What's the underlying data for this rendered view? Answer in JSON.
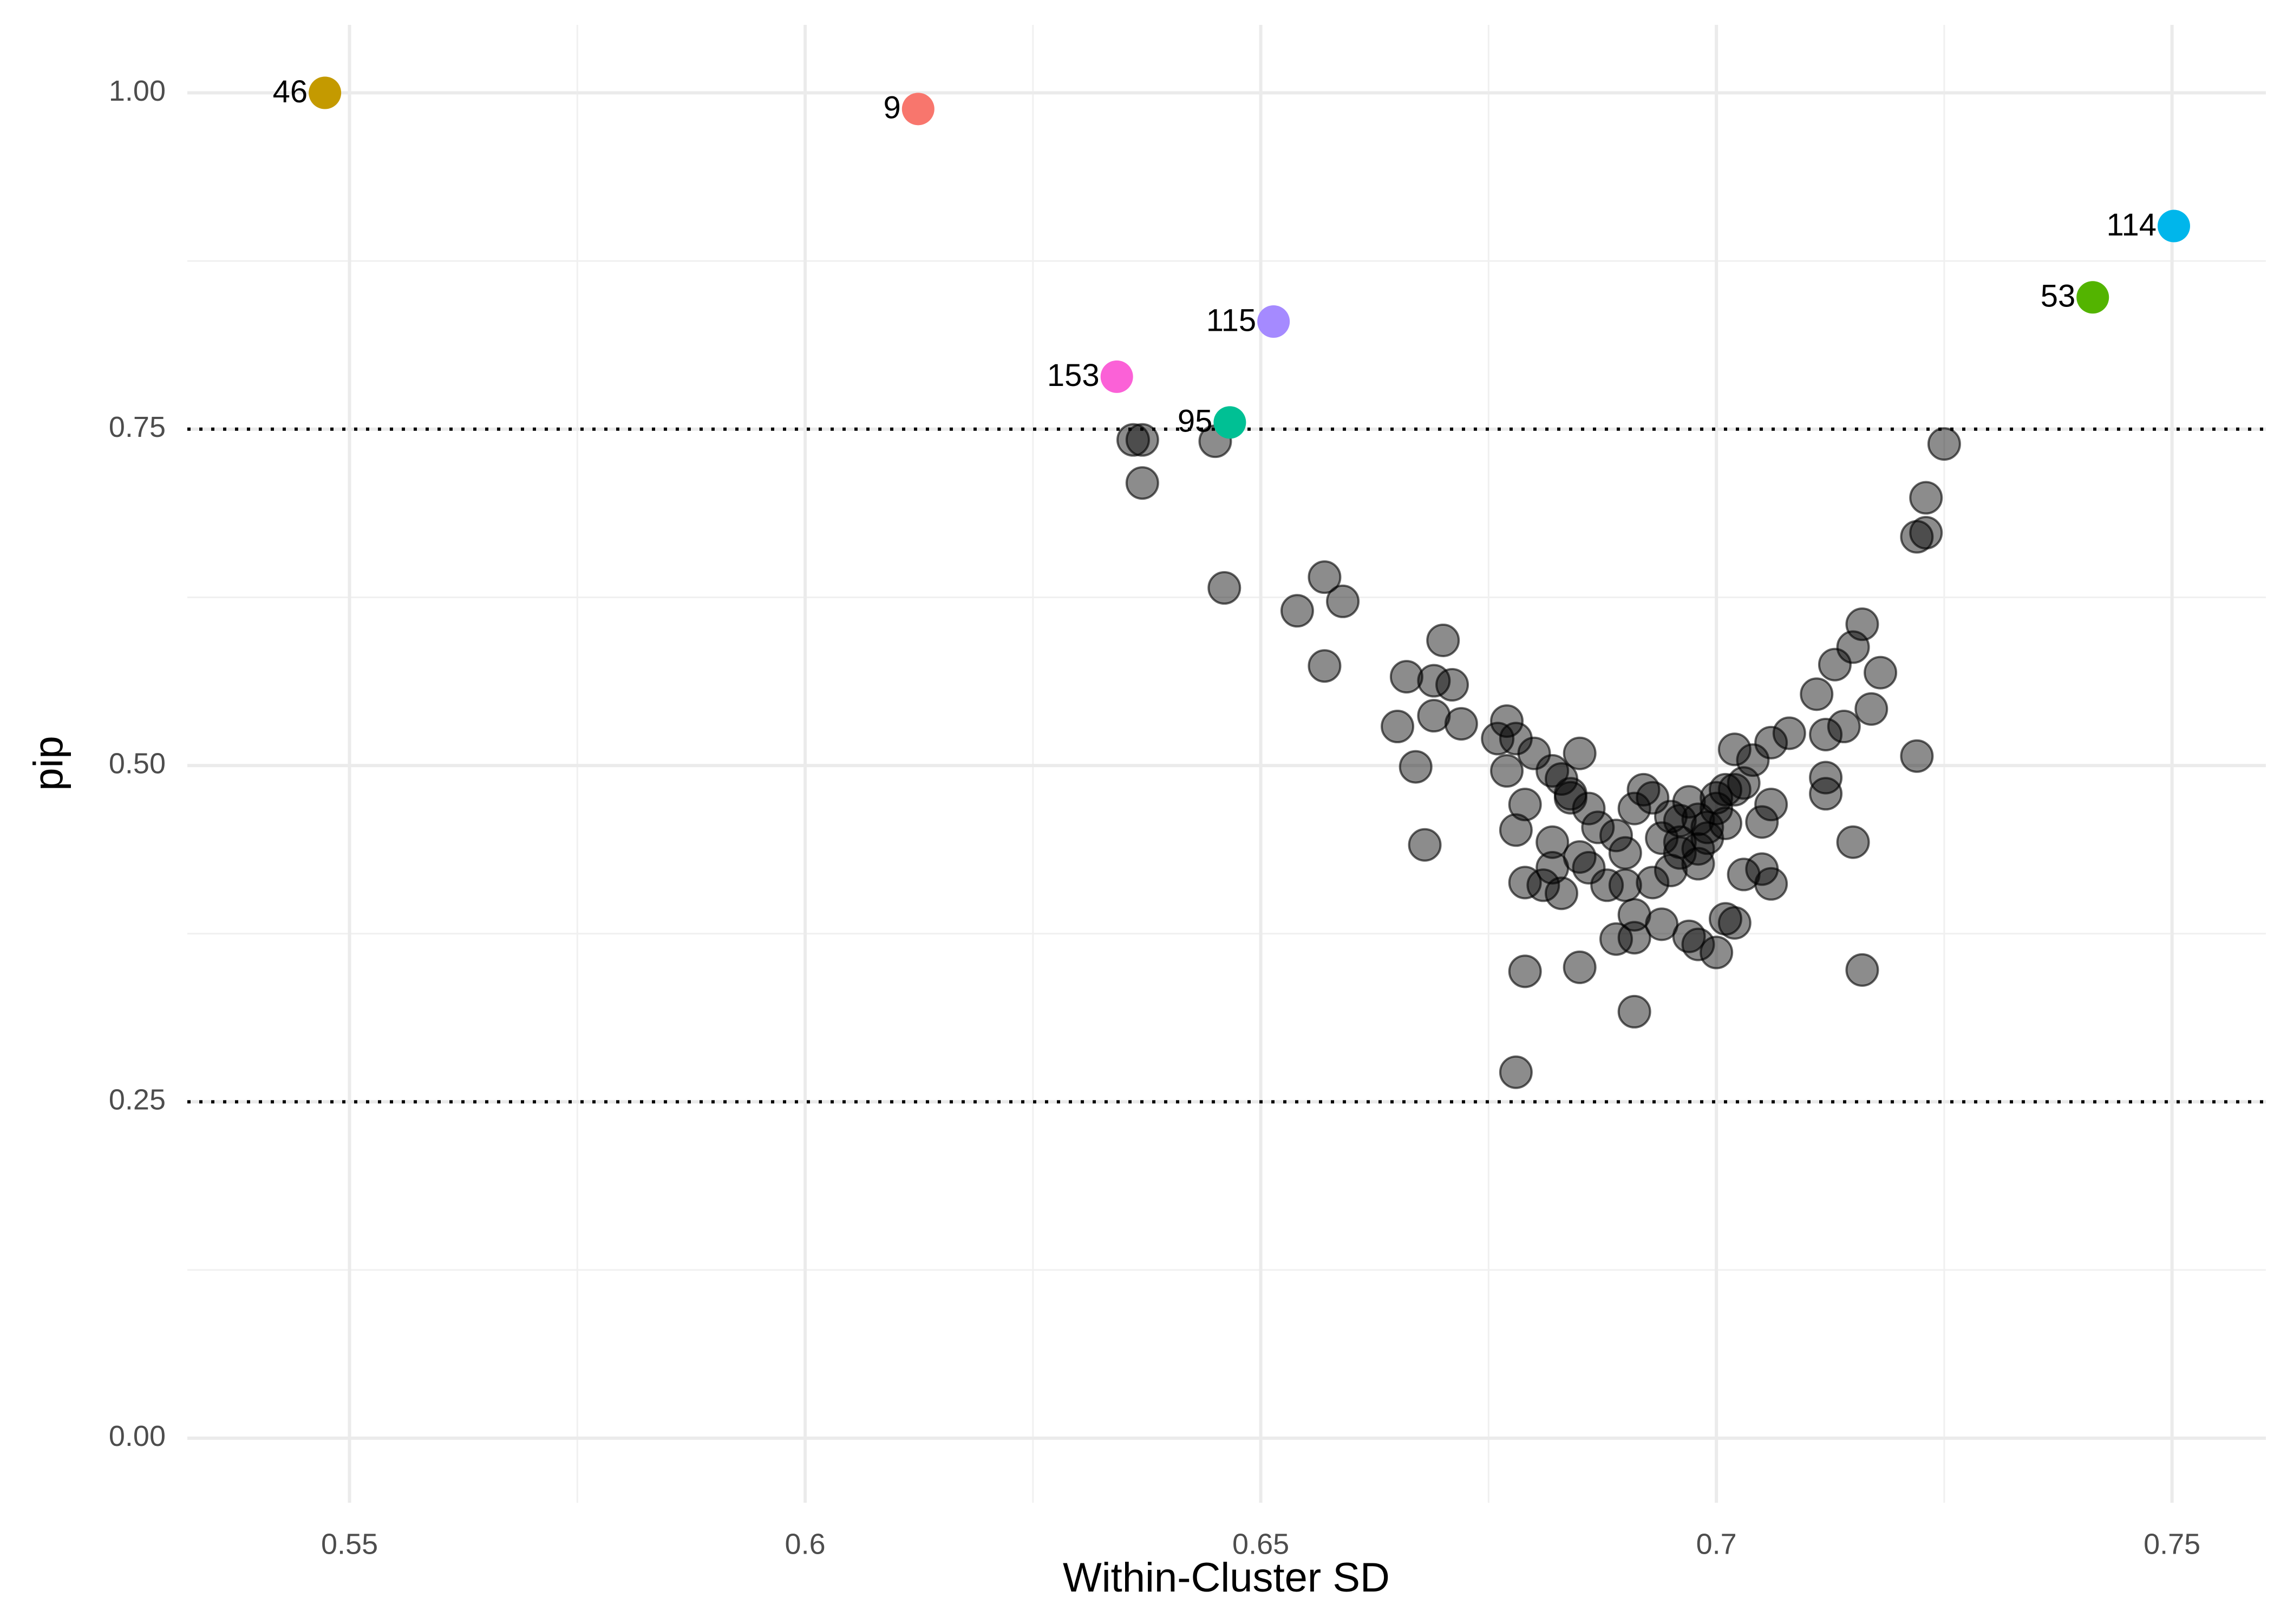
{
  "chart_data": {
    "type": "scatter",
    "x_label": "Within-Cluster SD",
    "y_label": "pip",
    "xlim": [
      0.5322,
      0.7603
    ],
    "ylim": [
      -0.048,
      1.0505
    ],
    "xticks": [
      0.55,
      0.6,
      0.65,
      0.7,
      0.75
    ],
    "xminor": [
      0.575,
      0.625,
      0.675,
      0.725
    ],
    "yticks": [
      {
        "value": 0,
        "label": "0.00"
      },
      {
        "value": 0.25,
        "label": "0.25"
      },
      {
        "value": 0.5,
        "label": "0.50"
      },
      {
        "value": 0.75,
        "label": "0.75"
      },
      {
        "value": 1,
        "label": "1.00"
      }
    ],
    "yminor": [
      0.125,
      0.375,
      0.625,
      0.875
    ],
    "grid": true,
    "hlines": [
      0.25,
      0.75
    ],
    "series": [
      {
        "color": "#000000",
        "opacity": 0.45,
        "x": [
          0.636,
          0.637,
          0.637,
          0.645,
          0.646,
          0.723,
          0.725,
          0.722,
          0.723,
          0.654,
          0.657,
          0.659,
          0.657,
          0.67,
          0.666,
          0.669,
          0.671,
          0.665,
          0.667,
          0.669,
          0.672,
          0.668,
          0.678,
          0.691,
          0.679,
          0.685,
          0.716,
          0.722,
          0.716,
          0.715,
          0.713,
          0.711,
          0.718,
          0.717,
          0.714,
          0.712,
          0.712,
          0.712,
          0.715,
          0.708,
          0.706,
          0.704,
          0.702,
          0.706,
          0.705,
          0.705,
          0.706,
          0.702,
          0.701,
          0.7,
          0.698,
          0.697,
          0.694,
          0.691,
          0.689,
          0.691,
          0.69,
          0.693,
          0.695,
          0.696,
          0.696,
          0.698,
          0.699,
          0.699,
          0.7,
          0.7,
          0.701,
          0.701,
          0.703,
          0.698,
          0.696,
          0.695,
          0.693,
          0.692,
          0.691,
          0.689,
          0.687,
          0.686,
          0.684,
          0.683,
          0.682,
          0.68,
          0.678,
          0.677,
          0.676,
          0.677,
          0.679,
          0.678,
          0.685,
          0.685,
          0.686,
          0.688,
          0.682,
          0.681,
          0.683,
          0.679,
          0.682,
          0.684,
          0.69,
          0.694,
          0.703,
          0.697,
          0.698,
          0.702
        ],
        "y": [
          0.742,
          0.742,
          0.71,
          0.741,
          0.632,
          0.699,
          0.739,
          0.67,
          0.673,
          0.615,
          0.64,
          0.622,
          0.574,
          0.593,
          0.566,
          0.563,
          0.56,
          0.529,
          0.499,
          0.537,
          0.531,
          0.441,
          0.272,
          0.317,
          0.347,
          0.35,
          0.348,
          0.507,
          0.605,
          0.588,
          0.575,
          0.553,
          0.569,
          0.542,
          0.529,
          0.523,
          0.491,
          0.479,
          0.443,
          0.524,
          0.517,
          0.504,
          0.512,
          0.471,
          0.458,
          0.423,
          0.412,
          0.383,
          0.386,
          0.361,
          0.367,
          0.373,
          0.382,
          0.389,
          0.371,
          0.372,
          0.411,
          0.413,
          0.422,
          0.435,
          0.443,
          0.438,
          0.446,
          0.454,
          0.468,
          0.476,
          0.482,
          0.457,
          0.487,
          0.46,
          0.459,
          0.462,
          0.476,
          0.482,
          0.468,
          0.448,
          0.454,
          0.468,
          0.479,
          0.49,
          0.496,
          0.509,
          0.52,
          0.533,
          0.52,
          0.496,
          0.471,
          0.452,
          0.509,
          0.432,
          0.424,
          0.411,
          0.424,
          0.411,
          0.405,
          0.413,
          0.443,
          0.476,
          0.435,
          0.446,
          0.419,
          0.473,
          0.427,
          0.482
        ]
      }
    ],
    "highlighted": [
      {
        "label": "46",
        "x": 0.5473,
        "y": 1.0,
        "color": "#C49A00"
      },
      {
        "label": "9",
        "x": 0.6124,
        "y": 0.988,
        "color": "#F8766D"
      },
      {
        "label": "114",
        "x": 0.7502,
        "y": 0.901,
        "color": "#00B6EB"
      },
      {
        "label": "53",
        "x": 0.7413,
        "y": 0.848,
        "color": "#53B400"
      },
      {
        "label": "115",
        "x": 0.6514,
        "y": 0.83,
        "color": "#A58AFF"
      },
      {
        "label": "153",
        "x": 0.6342,
        "y": 0.789,
        "color": "#FB61D7"
      },
      {
        "label": "95",
        "x": 0.6466,
        "y": 0.755,
        "color": "#00C094"
      }
    ]
  }
}
